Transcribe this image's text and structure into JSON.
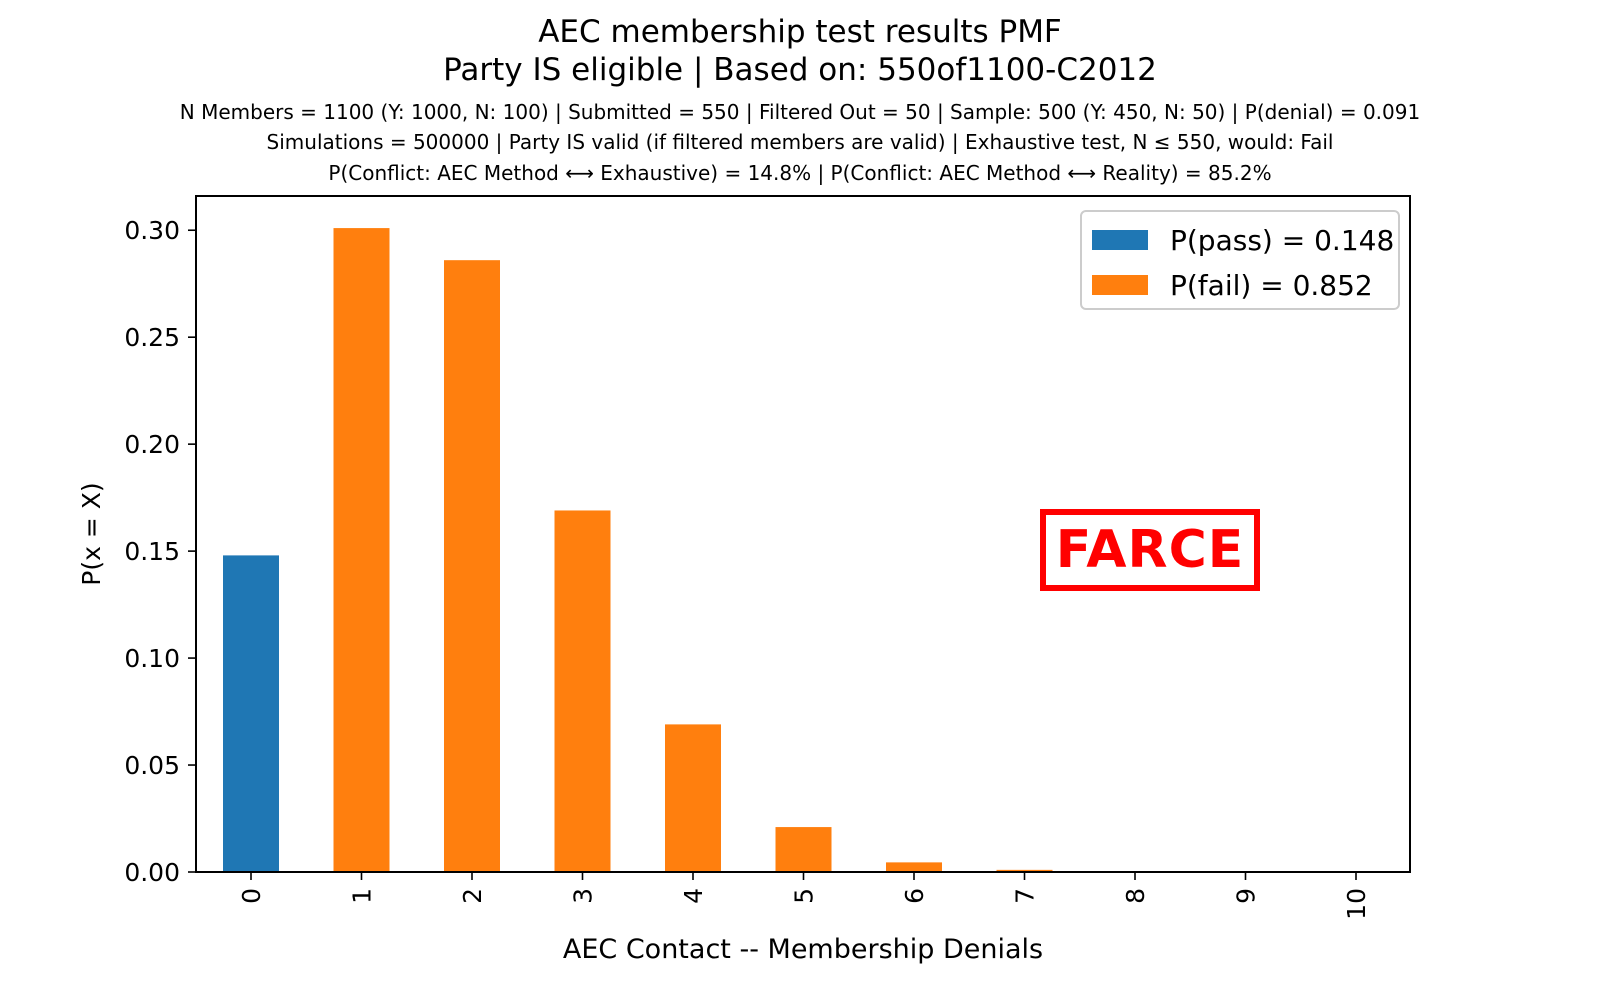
{
  "header": {
    "title_line1": "AEC membership test results PMF",
    "title_line2": "Party IS eligible | Based on: 550of1100-C2012",
    "info_line1": "N Members = 1100 (Y: 1000, N: 100) | Submitted = 550 | Filtered Out = 50 | Sample: 500 (Y: 450, N: 50) | P(denial) = 0.091",
    "info_line2": "Simulations = 500000 | Party IS valid (if filtered members are valid) | Exhaustive test, N ≤ 550, would: Fail",
    "info_line3": "P(Conflict: AEC Method ⟷ Exhaustive) = 14.8% | P(Conflict: AEC Method ⟷ Reality) = 85.2%"
  },
  "stamp": {
    "text": "FARCE",
    "color": "#ff0000"
  },
  "legend": {
    "placement": "top-right",
    "items": [
      {
        "label": "P(pass) = 0.148",
        "color": "#1f77b4"
      },
      {
        "label": "P(fail) = 0.852",
        "color": "#ff7f0e"
      }
    ]
  },
  "chart_data": {
    "type": "bar",
    "xlabel": "AEC Contact -- Membership Denials",
    "ylabel": "P(x = X)",
    "categories": [
      "0",
      "1",
      "2",
      "3",
      "4",
      "5",
      "6",
      "7",
      "8",
      "9",
      "10"
    ],
    "values": [
      0.148,
      0.301,
      0.286,
      0.169,
      0.069,
      0.021,
      0.0045,
      0.001,
      0.0,
      0.0,
      0.0
    ],
    "bar_colors": [
      "#1f77b4",
      "#ff7f0e",
      "#ff7f0e",
      "#ff7f0e",
      "#ff7f0e",
      "#ff7f0e",
      "#ff7f0e",
      "#ff7f0e",
      "#ff7f0e",
      "#ff7f0e",
      "#ff7f0e"
    ],
    "ylim": [
      0,
      0.316
    ],
    "yticks": [
      "0.00",
      "0.05",
      "0.10",
      "0.15",
      "0.20",
      "0.25",
      "0.30"
    ],
    "ytick_values": [
      0,
      0.05,
      0.1,
      0.15,
      0.2,
      0.25,
      0.3
    ],
    "grid": false
  }
}
